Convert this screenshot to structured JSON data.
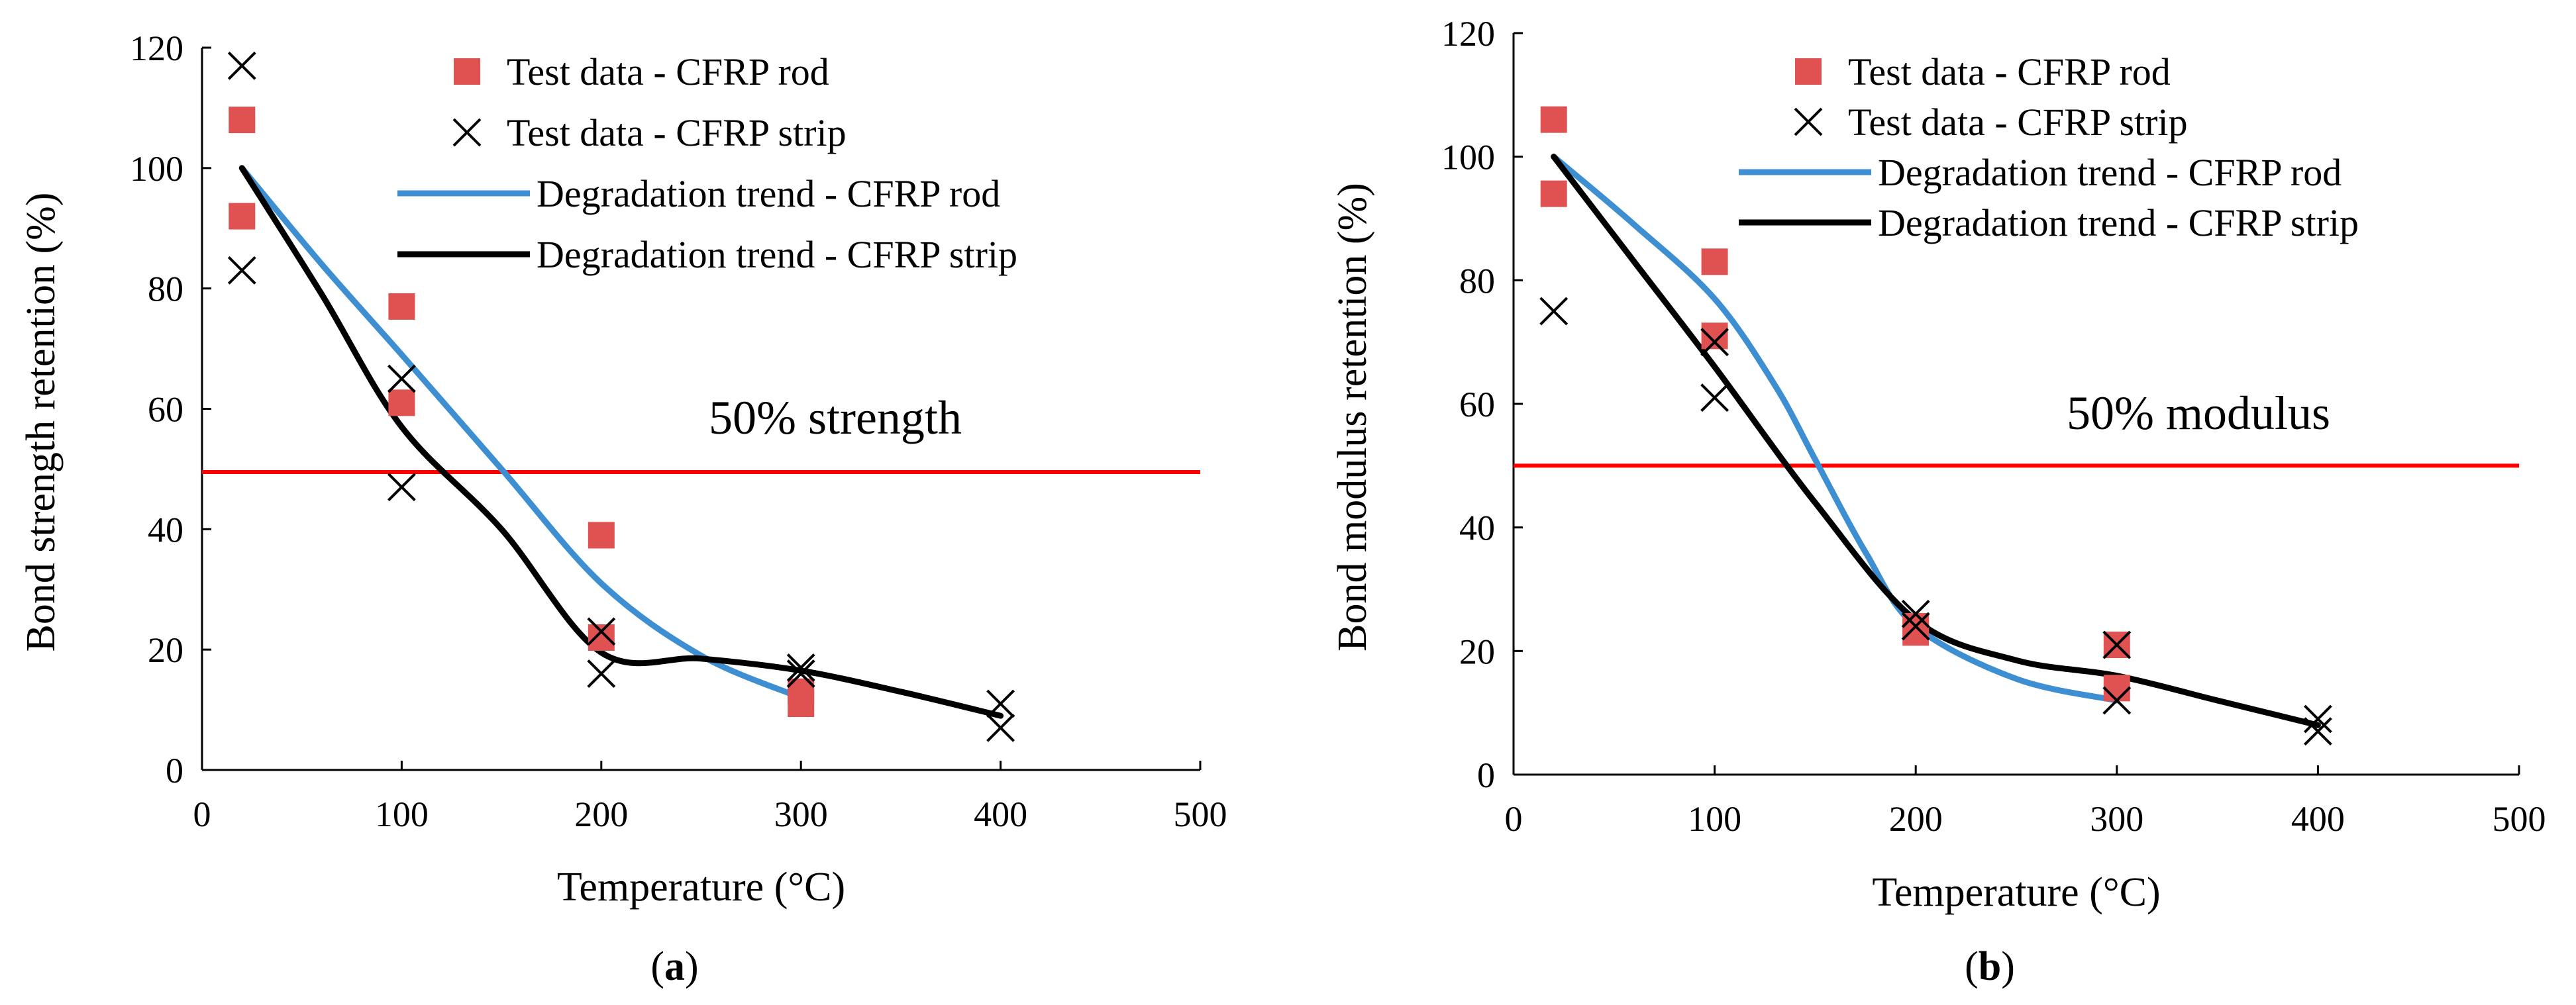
{
  "chart_data": [
    {
      "type": "scatter",
      "panel_label": "(a)",
      "panel_letter": "a",
      "xlabel": "Temperature (°C)",
      "ylabel": "Bond strength retention (%)",
      "xlim": [
        0,
        500
      ],
      "ylim": [
        0,
        120
      ],
      "xticks": [
        0,
        100,
        200,
        300,
        400,
        500
      ],
      "yticks": [
        0,
        20,
        40,
        60,
        80,
        100,
        120
      ],
      "grid": false,
      "legend": "top-center",
      "reference_line": {
        "y": 49.5,
        "label": "50% strength",
        "color": "#ff0000"
      },
      "series": [
        {
          "name": "Test data - CFRP rod",
          "kind": "marker-square",
          "color": "#e05252",
          "points": [
            [
              20,
              108
            ],
            [
              20,
              92
            ],
            [
              100,
              77
            ],
            [
              100,
              61
            ],
            [
              200,
              39
            ],
            [
              200,
              22
            ],
            [
              300,
              13
            ],
            [
              300,
              11
            ]
          ]
        },
        {
          "name": "Test data - CFRP strip",
          "kind": "marker-x",
          "color": "#000000",
          "points": [
            [
              20,
              117
            ],
            [
              20,
              83
            ],
            [
              100,
              65
            ],
            [
              100,
              47
            ],
            [
              200,
              23
            ],
            [
              200,
              16
            ],
            [
              300,
              17
            ],
            [
              300,
              16
            ],
            [
              400,
              11
            ],
            [
              400,
              7
            ]
          ]
        },
        {
          "name": "Degradation trend - CFRP rod",
          "kind": "line",
          "color": "#3d8fd1",
          "points": [
            [
              20,
              100
            ],
            [
              60,
              84
            ],
            [
              100,
              69
            ],
            [
              150,
              50
            ],
            [
              200,
              31
            ],
            [
              250,
              19
            ],
            [
              300,
              12
            ]
          ]
        },
        {
          "name": "Degradation trend - CFRP strip",
          "kind": "line",
          "color": "#000000",
          "points": [
            [
              20,
              100
            ],
            [
              60,
              79
            ],
            [
              100,
              57
            ],
            [
              150,
              40
            ],
            [
              200,
              19.5
            ],
            [
              250,
              18.5
            ],
            [
              300,
              16.5
            ],
            [
              350,
              13
            ],
            [
              400,
              9
            ]
          ]
        }
      ]
    },
    {
      "type": "scatter",
      "panel_label": "(b)",
      "panel_letter": "b",
      "xlabel": "Temperature (°C)",
      "ylabel": "Bond modulus retention (%)",
      "xlim": [
        0,
        500
      ],
      "ylim": [
        0,
        120
      ],
      "xticks": [
        0,
        100,
        200,
        300,
        400,
        500
      ],
      "yticks": [
        0,
        20,
        40,
        60,
        80,
        100,
        120
      ],
      "grid": false,
      "legend": "top-center",
      "reference_line": {
        "y": 50,
        "label": "50% modulus",
        "color": "#ff0000"
      },
      "series": [
        {
          "name": "Test data - CFRP rod",
          "kind": "marker-square",
          "color": "#e05252",
          "points": [
            [
              20,
              106
            ],
            [
              20,
              94
            ],
            [
              100,
              83
            ],
            [
              100,
              71
            ],
            [
              200,
              24
            ],
            [
              200,
              23
            ],
            [
              300,
              21
            ],
            [
              300,
              14
            ]
          ]
        },
        {
          "name": "Test data - CFRP strip",
          "kind": "marker-x",
          "color": "#000000",
          "points": [
            [
              20,
              75
            ],
            [
              100,
              70
            ],
            [
              100,
              61
            ],
            [
              200,
              26
            ],
            [
              200,
              24
            ],
            [
              300,
              21
            ],
            [
              300,
              12
            ],
            [
              400,
              9
            ],
            [
              400,
              7
            ]
          ]
        },
        {
          "name": "Degradation trend - CFRP rod",
          "kind": "line",
          "color": "#3d8fd1",
          "points": [
            [
              20,
              100
            ],
            [
              60,
              89
            ],
            [
              100,
              77
            ],
            [
              130,
              63
            ],
            [
              150,
              51
            ],
            [
              175,
              36
            ],
            [
              200,
              24
            ],
            [
              250,
              15.5
            ],
            [
              300,
              12
            ]
          ]
        },
        {
          "name": "Degradation trend - CFRP strip",
          "kind": "line",
          "color": "#000000",
          "points": [
            [
              20,
              100
            ],
            [
              60,
              83
            ],
            [
              100,
              66
            ],
            [
              150,
              44
            ],
            [
              200,
              25
            ],
            [
              250,
              18.5
            ],
            [
              300,
              16
            ],
            [
              350,
              12
            ],
            [
              400,
              8
            ]
          ]
        }
      ]
    }
  ]
}
